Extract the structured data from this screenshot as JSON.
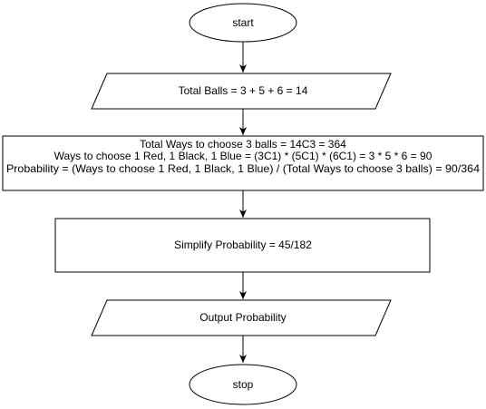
{
  "diagram": {
    "type": "flowchart",
    "stroke_color": "#000000",
    "fill_color": "#ffffff",
    "nodes": [
      {
        "id": "start",
        "shape": "terminator",
        "lines": [
          "start"
        ]
      },
      {
        "id": "total-balls",
        "shape": "input-output",
        "lines": [
          "Total Balls = 3 + 5 + 6 = 14"
        ]
      },
      {
        "id": "computation",
        "shape": "process",
        "lines": [
          "Total Ways to choose 3 balls = 14C3 = 364",
          "Ways to choose 1 Red, 1 Black, 1 Blue = (3C1) * (5C1) * (6C1) = 3 * 5 * 6 = 90",
          "Probability = (Ways to choose 1 Red, 1 Black, 1 Blue) / (Total Ways to choose 3 balls) = 90/364"
        ]
      },
      {
        "id": "simplify",
        "shape": "process",
        "lines": [
          "Simplify Probability = 45/182"
        ]
      },
      {
        "id": "output",
        "shape": "input-output",
        "lines": [
          "Output Probability"
        ]
      },
      {
        "id": "stop",
        "shape": "terminator",
        "lines": [
          "stop"
        ]
      }
    ],
    "edges": [
      {
        "from": "start",
        "to": "total-balls"
      },
      {
        "from": "total-balls",
        "to": "computation"
      },
      {
        "from": "computation",
        "to": "simplify"
      },
      {
        "from": "simplify",
        "to": "output"
      },
      {
        "from": "output",
        "to": "stop"
      }
    ]
  }
}
